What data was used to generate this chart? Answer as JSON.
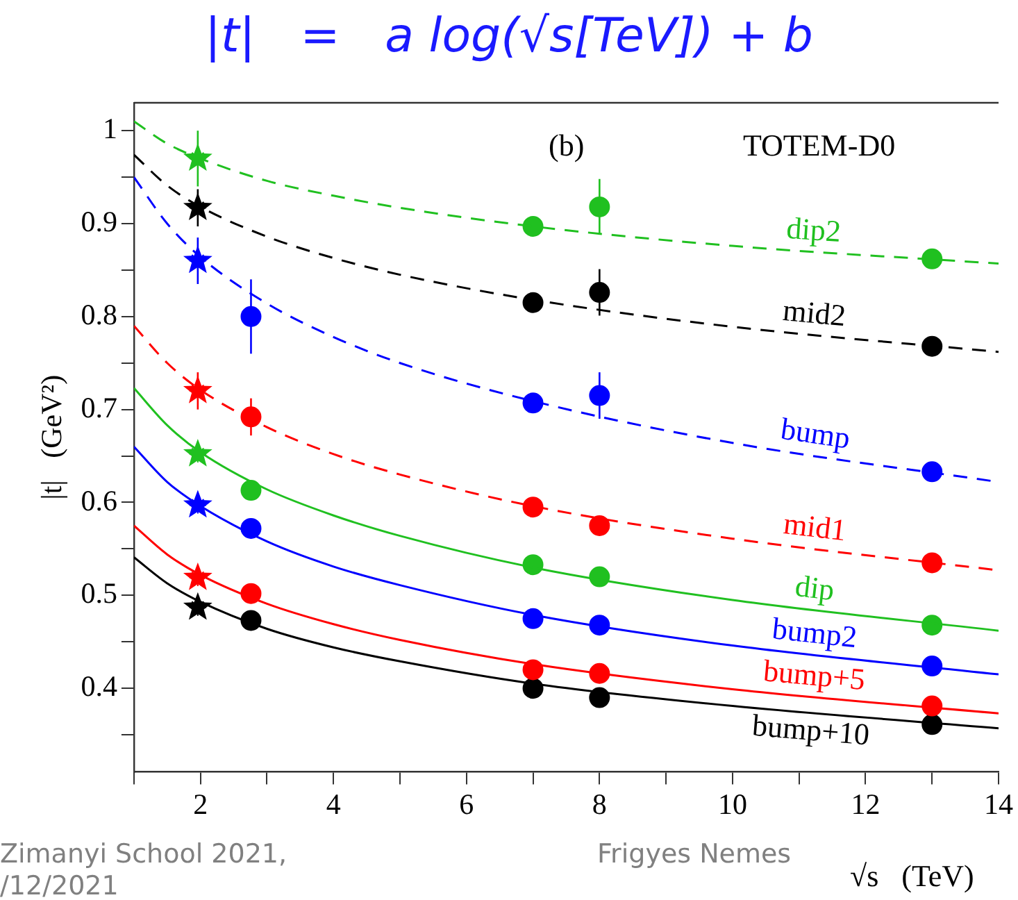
{
  "chart_data": {
    "type": "line",
    "title": "|t|   =   a log(√s[TeV]) + b",
    "xlabel": "√s   (TeV)",
    "ylabel": "|t|   (GeV²)",
    "xlim": [
      1,
      14
    ],
    "ylim": [
      0.31,
      1.03
    ],
    "xticks": [
      {
        "value": 1,
        "label": null
      },
      2,
      {
        "value": 3,
        "label": null
      },
      4,
      {
        "value": 5,
        "label": null
      },
      6,
      {
        "value": 7,
        "label": null
      },
      8,
      {
        "value": 9,
        "label": null
      },
      10,
      {
        "value": 11,
        "label": null
      },
      12,
      {
        "value": 13,
        "label": null
      },
      14
    ],
    "yticks": [
      {
        "value": 0.35,
        "label": null
      },
      0.4,
      {
        "value": 0.45,
        "label": null
      },
      0.5,
      {
        "value": 0.55,
        "label": null
      },
      0.6,
      {
        "value": 0.65,
        "label": null
      },
      0.7,
      {
        "value": 0.75,
        "label": null
      },
      0.8,
      {
        "value": 0.85,
        "label": null
      },
      0.9,
      {
        "value": 0.95,
        "label": null
      },
      1
    ],
    "grid": false,
    "legend": false,
    "annotations": [
      "(b)",
      "TOTEM-D0",
      "Zimanyi School 2021,",
      "/12/2021",
      "Frigyes Nemes"
    ],
    "series": [
      {
        "name": "dip2",
        "line_style": "dashed",
        "marker": "none",
        "color": "#20c020",
        "x": [
          1,
          1.5,
          2,
          3,
          4,
          5,
          7,
          10,
          14
        ],
        "values": [
          1.01,
          0.986,
          0.97,
          0.946,
          0.93,
          0.917,
          0.897,
          0.876,
          0.857
        ]
      },
      {
        "name": "mid2",
        "line_style": "dashed",
        "marker": "none",
        "color": "#000000",
        "x": [
          1,
          1.5,
          2,
          3,
          4,
          5,
          7,
          10,
          14
        ],
        "values": [
          0.974,
          0.941,
          0.918,
          0.886,
          0.863,
          0.845,
          0.818,
          0.789,
          0.762
        ]
      },
      {
        "name": "bump",
        "line_style": "dashed",
        "marker": "none",
        "color": "#0000ff",
        "x": [
          1,
          1.5,
          2,
          3,
          4,
          5,
          7,
          10,
          14
        ],
        "values": [
          0.95,
          0.9,
          0.864,
          0.814,
          0.778,
          0.75,
          0.709,
          0.664,
          0.622
        ]
      },
      {
        "name": "mid1",
        "line_style": "dashed",
        "marker": "none",
        "color": "#ff0000",
        "x": [
          1,
          1.5,
          2,
          3,
          4,
          5,
          7,
          10,
          14
        ],
        "values": [
          0.79,
          0.75,
          0.721,
          0.681,
          0.652,
          0.63,
          0.596,
          0.561,
          0.527
        ]
      },
      {
        "name": "dip",
        "line_style": "solid",
        "marker": "none",
        "color": "#20c020",
        "x": [
          1,
          1.5,
          2,
          3,
          4,
          5,
          7,
          10,
          14
        ],
        "values": [
          0.723,
          0.683,
          0.654,
          0.614,
          0.586,
          0.564,
          0.53,
          0.495,
          0.462
        ]
      },
      {
        "name": "bump2",
        "line_style": "solid",
        "marker": "none",
        "color": "#0000ff",
        "x": [
          1,
          1.5,
          2,
          3,
          4,
          5,
          7,
          10,
          14
        ],
        "values": [
          0.66,
          0.622,
          0.596,
          0.558,
          0.531,
          0.511,
          0.479,
          0.446,
          0.415
        ]
      },
      {
        "name": "bump+5",
        "line_style": "solid",
        "marker": "none",
        "color": "#ff0000",
        "x": [
          1,
          1.5,
          2,
          3,
          4,
          5,
          7,
          10,
          14
        ],
        "values": [
          0.575,
          0.544,
          0.522,
          0.491,
          0.469,
          0.452,
          0.426,
          0.399,
          0.373
        ]
      },
      {
        "name": "bump+10",
        "line_style": "solid",
        "marker": "none",
        "color": "#000000",
        "x": [
          1,
          1.5,
          2,
          3,
          4,
          5,
          7,
          10,
          14
        ],
        "values": [
          0.541,
          0.513,
          0.493,
          0.464,
          0.444,
          0.429,
          0.405,
          0.381,
          0.357
        ]
      },
      {
        "type": "scatter",
        "marker": "circle",
        "color": "#20c020",
        "x": [
          7,
          8,
          13
        ],
        "values": [
          0.897,
          0.918,
          0.862
        ],
        "errors": [
          null,
          0.03,
          null
        ]
      },
      {
        "type": "scatter",
        "marker": "circle",
        "color": "#000000",
        "x": [
          7,
          8,
          13
        ],
        "values": [
          0.815,
          0.826,
          0.768
        ],
        "errors": [
          null,
          0.025,
          null
        ]
      },
      {
        "type": "scatter",
        "marker": "circle",
        "color": "#0000ff",
        "x": [
          2.76,
          7,
          8,
          13
        ],
        "values": [
          0.8,
          0.707,
          0.715,
          0.633
        ],
        "errors": [
          0.04,
          null,
          0.025,
          null
        ]
      },
      {
        "type": "scatter",
        "marker": "circle",
        "color": "#ff0000",
        "x": [
          2.76,
          7,
          8,
          13
        ],
        "values": [
          0.692,
          0.595,
          0.575,
          0.535
        ],
        "errors": [
          0.02,
          null,
          0.01,
          null
        ]
      },
      {
        "type": "scatter",
        "marker": "circle",
        "color": "#20c020",
        "x": [
          2.76,
          7,
          8,
          13
        ],
        "values": [
          0.613,
          0.533,
          0.52,
          0.468
        ]
      },
      {
        "type": "scatter",
        "marker": "circle",
        "color": "#0000ff",
        "x": [
          2.76,
          7,
          8,
          13
        ],
        "values": [
          0.572,
          0.475,
          0.468,
          0.424
        ]
      },
      {
        "type": "scatter",
        "marker": "circle",
        "color": "#ff0000",
        "x": [
          2.76,
          7,
          8,
          13
        ],
        "values": [
          0.502,
          0.42,
          0.416,
          0.381
        ]
      },
      {
        "type": "scatter",
        "marker": "circle",
        "color": "#000000",
        "x": [
          2.76,
          7,
          8,
          13
        ],
        "values": [
          0.473,
          0.4,
          0.39,
          0.361
        ]
      },
      {
        "type": "scatter",
        "marker": "star",
        "colors": [
          "#20c020",
          "#000000",
          "#0000ff",
          "#ff0000",
          "#20c020",
          "#0000ff",
          "#ff0000",
          "#000000"
        ],
        "x": [
          1.96,
          1.96,
          1.96,
          1.96,
          1.96,
          1.96,
          1.96,
          1.96
        ],
        "values": [
          0.97,
          0.917,
          0.86,
          0.72,
          0.652,
          0.597,
          0.519,
          0.487
        ],
        "errors": [
          0.03,
          0.02,
          0.025,
          0.02,
          null,
          null,
          null,
          null
        ]
      }
    ]
  }
}
